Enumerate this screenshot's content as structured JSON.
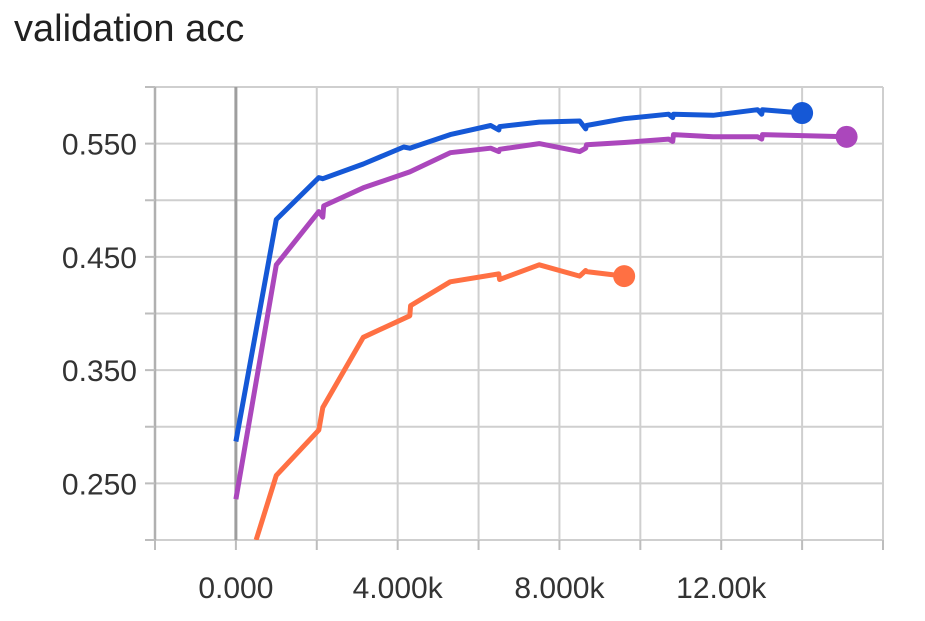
{
  "title": "validation acc",
  "chart_data": {
    "type": "line",
    "title": "validation acc",
    "xlabel": "",
    "ylabel": "",
    "xlim": [
      -2000,
      16000
    ],
    "ylim": [
      0.2,
      0.6
    ],
    "xticks": [
      {
        "value": 0,
        "label": "0.000"
      },
      {
        "value": 4000,
        "label": "4.000k"
      },
      {
        "value": 8000,
        "label": "8.000k"
      },
      {
        "value": 12000,
        "label": "12.00k"
      }
    ],
    "yticks": [
      {
        "value": 0.25,
        "label": "0.250"
      },
      {
        "value": 0.35,
        "label": "0.350"
      },
      {
        "value": 0.45,
        "label": "0.450"
      },
      {
        "value": 0.55,
        "label": "0.550"
      }
    ],
    "grid": true,
    "series": [
      {
        "color": "#1558d6",
        "x": [
          0,
          1000,
          2050,
          2150,
          3150,
          4150,
          4300,
          5300,
          6300,
          6500,
          6520,
          7500,
          8500,
          8650,
          8670,
          9600,
          10700,
          10800,
          10820,
          11800,
          12900,
          13000,
          13020,
          14000
        ],
        "y": [
          0.287,
          0.483,
          0.52,
          0.519,
          0.532,
          0.547,
          0.546,
          0.558,
          0.566,
          0.562,
          0.565,
          0.569,
          0.57,
          0.563,
          0.566,
          0.572,
          0.576,
          0.573,
          0.576,
          0.575,
          0.58,
          0.576,
          0.58,
          0.577
        ]
      },
      {
        "color": "#ab47bc",
        "x": [
          0,
          1000,
          2050,
          2150,
          2170,
          3150,
          4300,
          5300,
          6300,
          6500,
          6520,
          7500,
          8500,
          8650,
          8670,
          9600,
          10700,
          10800,
          10820,
          11800,
          12900,
          13000,
          13020,
          15100
        ],
        "y": [
          0.236,
          0.443,
          0.49,
          0.485,
          0.495,
          0.511,
          0.525,
          0.542,
          0.546,
          0.543,
          0.545,
          0.55,
          0.543,
          0.546,
          0.549,
          0.551,
          0.554,
          0.552,
          0.558,
          0.556,
          0.556,
          0.554,
          0.558,
          0.556
        ]
      },
      {
        "color": "#ff7043",
        "x": [
          500,
          1000,
          2050,
          2150,
          3150,
          4300,
          4320,
          5300,
          6500,
          6520,
          7500,
          8500,
          8650,
          8670,
          9600
        ],
        "y": [
          0.2,
          0.257,
          0.297,
          0.317,
          0.379,
          0.398,
          0.407,
          0.428,
          0.435,
          0.43,
          0.443,
          0.433,
          0.438,
          0.437,
          0.433
        ]
      }
    ]
  }
}
